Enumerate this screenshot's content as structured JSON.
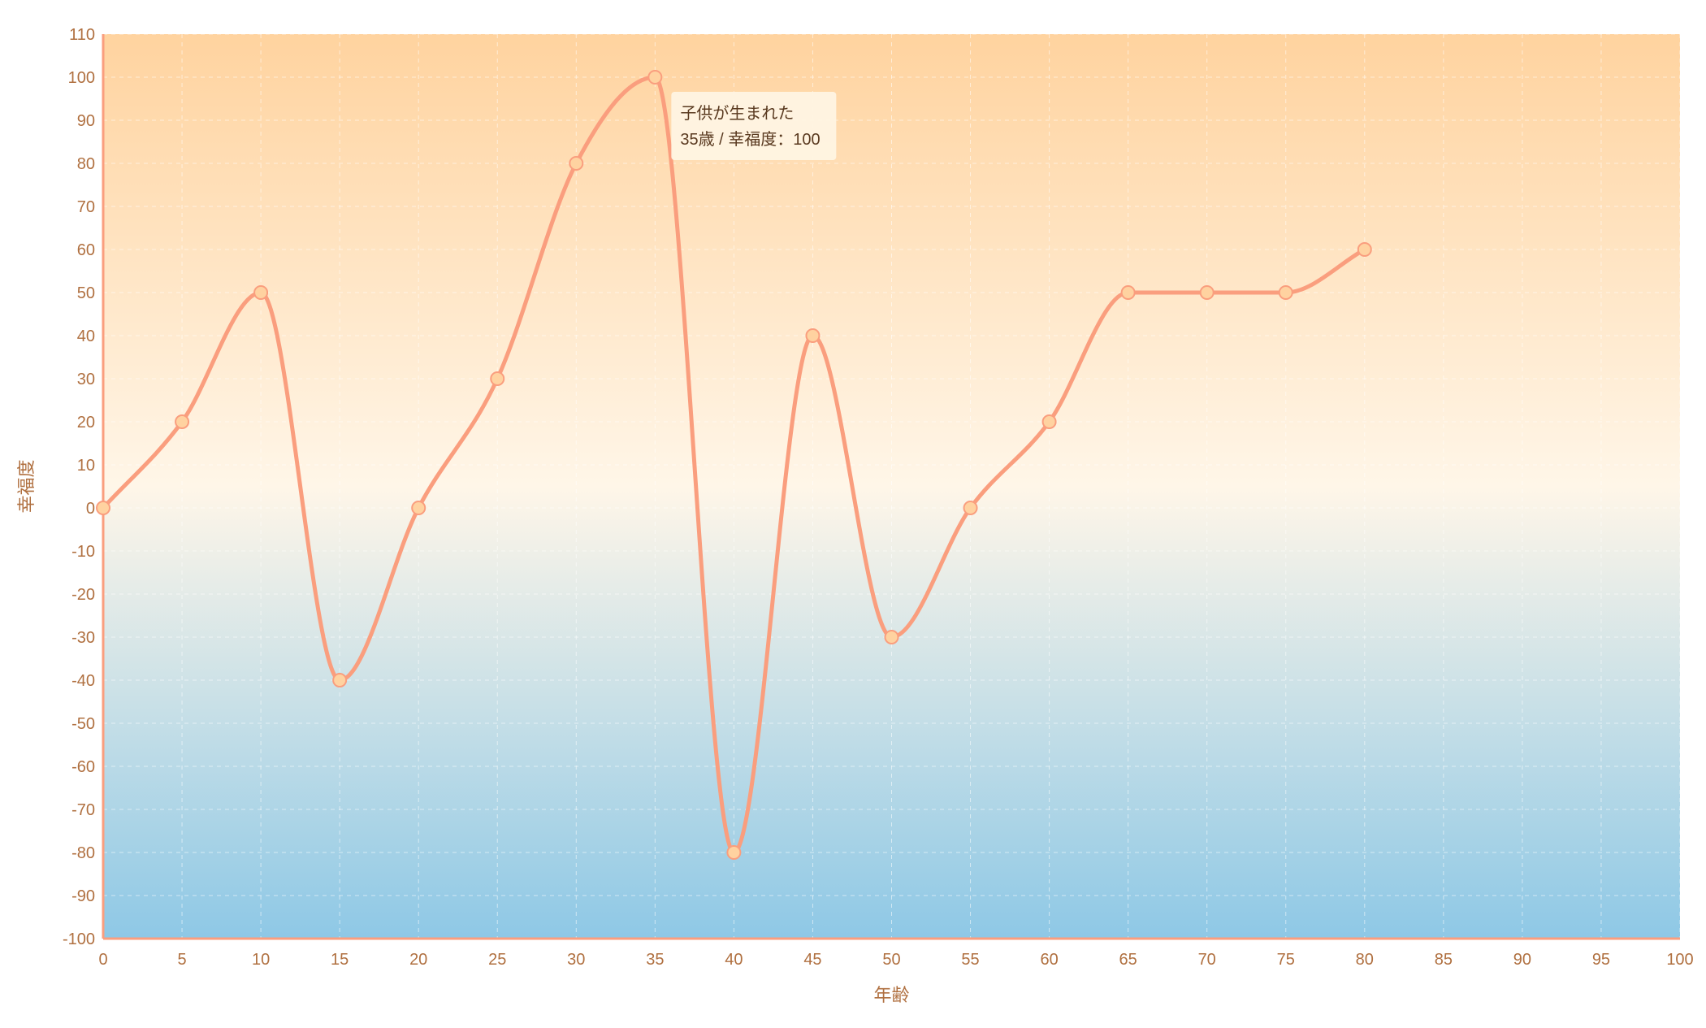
{
  "colors": {
    "top_band": "#ffd39f",
    "middle_band": "#fff6e8",
    "bottom_band": "#8ec8e6",
    "line": "#fa9e7e",
    "marker_fill": "#ffd2a0",
    "marker_stroke": "#fa9e7e",
    "axis": "#fa9e7e",
    "tick_text": "#b07040",
    "tooltip_bg": "#fff4e3",
    "tooltip_text": "#5a3a20"
  },
  "chart_data": {
    "type": "line",
    "xlabel": "年齢",
    "ylabel": "幸福度",
    "xlim": [
      0,
      100
    ],
    "ylim": [
      -100,
      110
    ],
    "x_ticks": [
      0,
      5,
      10,
      15,
      20,
      25,
      30,
      35,
      40,
      45,
      50,
      55,
      60,
      65,
      70,
      75,
      80,
      85,
      90,
      95,
      100
    ],
    "y_ticks": [
      110,
      100,
      90,
      80,
      70,
      60,
      50,
      40,
      30,
      20,
      10,
      0,
      -10,
      -20,
      -30,
      -40,
      -50,
      -60,
      -70,
      -80,
      -90,
      -100
    ],
    "grid": true,
    "curve": "smooth",
    "series": [
      {
        "x": [
          0,
          5,
          10,
          15,
          20,
          25,
          30,
          35,
          40,
          45,
          50,
          55,
          60,
          65,
          70,
          75,
          80
        ],
        "y": [
          0,
          20,
          50,
          -40,
          0,
          30,
          80,
          100,
          -80,
          40,
          -30,
          0,
          20,
          50,
          50,
          50,
          60
        ]
      }
    ],
    "tooltip": {
      "point_x": 35,
      "point_y": 100,
      "title": "子供が生まれた",
      "detail": "35歳 / 幸福度：100"
    }
  }
}
